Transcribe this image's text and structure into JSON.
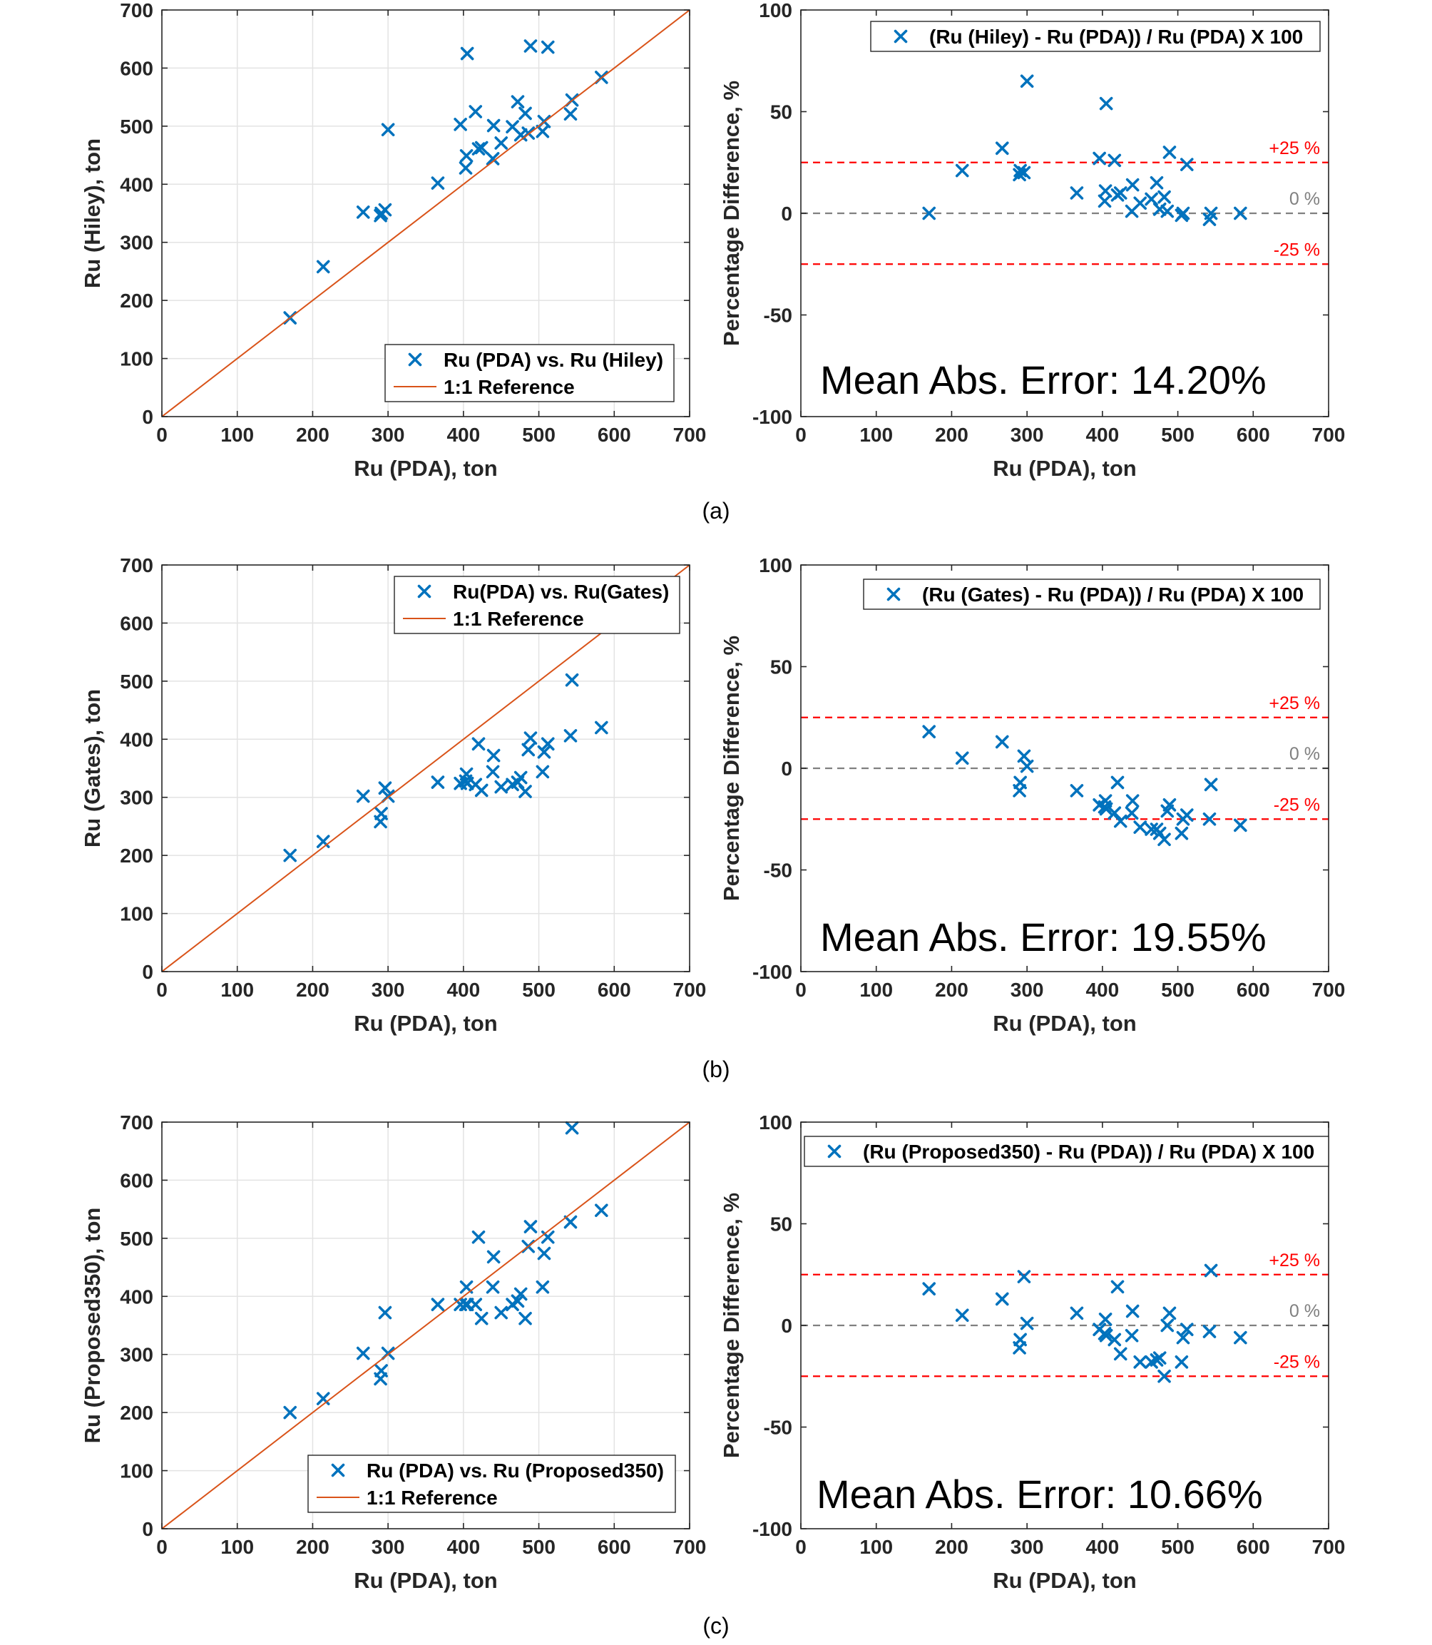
{
  "captions": [
    "(a)",
    "(b)",
    "(c)"
  ],
  "chart_data": [
    {
      "type": "scatter",
      "panel": "a-left",
      "xlabel": "Ru (PDA), ton",
      "ylabel": "Ru (Hiley), ton",
      "xlim": [
        0,
        700
      ],
      "ylim": [
        0,
        700
      ],
      "xticks": [
        0,
        100,
        200,
        300,
        400,
        500,
        600,
        700
      ],
      "yticks": [
        0,
        100,
        200,
        300,
        400,
        500,
        600,
        700
      ],
      "grid": true,
      "legend_position": "bottom-right",
      "series": [
        {
          "name": "Ru (PDA) vs. Ru (Hiley)",
          "color": "#0072BD",
          "marker": "x",
          "x": [
            170,
            214,
            267,
            290,
            291,
            296,
            300,
            366,
            396,
            403,
            404,
            405,
            416,
            420,
            424,
            439,
            440,
            450,
            465,
            472,
            476,
            482,
            486,
            489,
            505,
            507,
            512,
            542,
            544,
            583
          ],
          "y": [
            170,
            258,
            352,
            346,
            350,
            356,
            494,
            402,
            503,
            428,
            449,
            625,
            525,
            461,
            463,
            444,
            501,
            471,
            499,
            542,
            485,
            522,
            488,
            638,
            491,
            508,
            636,
            521,
            545,
            584
          ]
        },
        {
          "name": "1:1 Reference",
          "color": "#D95319",
          "type": "line",
          "x": [
            0,
            700
          ],
          "y": [
            0,
            700
          ]
        }
      ]
    },
    {
      "type": "scatter",
      "panel": "a-right",
      "xlabel": "Ru (PDA), ton",
      "ylabel": "Percentage Difference, %",
      "xlim": [
        0,
        700
      ],
      "ylim": [
        -100,
        100
      ],
      "xticks": [
        0,
        100,
        200,
        300,
        400,
        500,
        600,
        700
      ],
      "yticks": [
        -100,
        -50,
        0,
        50,
        100
      ],
      "grid": false,
      "legend_position": "top-right",
      "reference_lines": [
        {
          "y": 25,
          "label": "+25 %",
          "color": "#FF0000"
        },
        {
          "y": 0,
          "label": "0 %",
          "color": "#808080"
        },
        {
          "y": -25,
          "label": "-25 %",
          "color": "#FF0000"
        }
      ],
      "annotation": "Mean Abs. Error: 14.20%",
      "series": [
        {
          "name": "(Ru (Hiley) - Ru (PDA)) / Ru (PDA) X 100",
          "color": "#0072BD",
          "marker": "x",
          "x": [
            170,
            214,
            267,
            290,
            291,
            296,
            300,
            366,
            396,
            403,
            404,
            405,
            416,
            420,
            424,
            439,
            440,
            450,
            465,
            472,
            476,
            482,
            486,
            489,
            505,
            507,
            512,
            542,
            544,
            583
          ],
          "y": [
            0,
            21,
            32,
            19,
            21,
            20,
            65,
            10,
            27,
            6,
            11,
            54,
            26,
            9,
            10,
            1,
            14,
            5,
            7,
            15,
            2,
            8,
            1,
            30,
            -1,
            0,
            24,
            -3,
            0,
            0
          ]
        }
      ]
    },
    {
      "type": "scatter",
      "panel": "b-left",
      "xlabel": "Ru (PDA), ton",
      "ylabel": "Ru (Gates), ton",
      "xlim": [
        0,
        700
      ],
      "ylim": [
        0,
        700
      ],
      "xticks": [
        0,
        100,
        200,
        300,
        400,
        500,
        600,
        700
      ],
      "yticks": [
        0,
        100,
        200,
        300,
        400,
        500,
        600,
        700
      ],
      "grid": true,
      "legend_position": "top-right",
      "series": [
        {
          "name": "Ru(PDA) vs. Ru(Gates)",
          "color": "#0072BD",
          "marker": "x",
          "x": [
            170,
            214,
            267,
            290,
            291,
            296,
            300,
            366,
            396,
            403,
            404,
            405,
            416,
            420,
            424,
            439,
            440,
            450,
            465,
            472,
            476,
            482,
            486,
            489,
            505,
            507,
            512,
            542,
            544,
            583
          ],
          "y": [
            200,
            224,
            302,
            258,
            272,
            316,
            302,
            326,
            324,
            328,
            340,
            324,
            322,
            392,
            312,
            344,
            372,
            318,
            322,
            326,
            334,
            310,
            382,
            402,
            344,
            378,
            392,
            406,
            502,
            420
          ]
        },
        {
          "name": "1:1 Reference",
          "color": "#D95319",
          "type": "line",
          "x": [
            0,
            700
          ],
          "y": [
            0,
            700
          ]
        }
      ]
    },
    {
      "type": "scatter",
      "panel": "b-right",
      "xlabel": "Ru (PDA), ton",
      "ylabel": "Percentage Difference, %",
      "xlim": [
        0,
        700
      ],
      "ylim": [
        -100,
        100
      ],
      "xticks": [
        0,
        100,
        200,
        300,
        400,
        500,
        600,
        700
      ],
      "yticks": [
        -100,
        -50,
        0,
        50,
        100
      ],
      "grid": false,
      "legend_position": "top-right",
      "reference_lines": [
        {
          "y": 25,
          "label": "+25 %",
          "color": "#FF0000"
        },
        {
          "y": 0,
          "label": "0 %",
          "color": "#808080"
        },
        {
          "y": -25,
          "label": "-25 %",
          "color": "#FF0000"
        }
      ],
      "annotation": "Mean Abs. Error: 19.55%",
      "series": [
        {
          "name": "(Ru (Gates) - Ru (PDA)) / Ru (PDA) X 100",
          "color": "#0072BD",
          "marker": "x",
          "x": [
            170,
            214,
            267,
            290,
            291,
            296,
            300,
            366,
            396,
            403,
            404,
            405,
            416,
            420,
            424,
            439,
            440,
            450,
            465,
            472,
            476,
            482,
            486,
            489,
            505,
            507,
            512,
            542,
            544,
            583
          ],
          "y": [
            18,
            5,
            13,
            -11,
            -7,
            6,
            1,
            -11,
            -18,
            -19,
            -16,
            -20,
            -22,
            -7,
            -26,
            -22,
            -16,
            -29,
            -30,
            -30,
            -32,
            -35,
            -21,
            -18,
            -32,
            -25,
            -23,
            -25,
            -8,
            -28
          ]
        }
      ]
    },
    {
      "type": "scatter",
      "panel": "c-left",
      "xlabel": "Ru (PDA), ton",
      "ylabel": "Ru (Proposed350), ton",
      "xlim": [
        0,
        700
      ],
      "ylim": [
        0,
        700
      ],
      "xticks": [
        0,
        100,
        200,
        300,
        400,
        500,
        600,
        700
      ],
      "yticks": [
        0,
        100,
        200,
        300,
        400,
        500,
        600,
        700
      ],
      "grid": true,
      "legend_position": "bottom-right",
      "series": [
        {
          "name": "Ru (PDA) vs. Ru (Proposed350)",
          "color": "#0072BD",
          "marker": "x",
          "x": [
            170,
            214,
            267,
            290,
            291,
            296,
            300,
            366,
            396,
            403,
            404,
            405,
            416,
            420,
            424,
            439,
            440,
            450,
            465,
            472,
            476,
            482,
            486,
            489,
            505,
            507,
            512,
            542,
            544,
            583
          ],
          "y": [
            200,
            224,
            302,
            258,
            272,
            372,
            302,
            386,
            386,
            386,
            416,
            386,
            386,
            502,
            362,
            416,
            468,
            372,
            386,
            392,
            404,
            362,
            486,
            520,
            416,
            474,
            502,
            528,
            690,
            548
          ]
        },
        {
          "name": "1:1 Reference",
          "color": "#D95319",
          "type": "line",
          "x": [
            0,
            700
          ],
          "y": [
            0,
            700
          ]
        }
      ]
    },
    {
      "type": "scatter",
      "panel": "c-right",
      "xlabel": "Ru (PDA), ton",
      "ylabel": "Percentage Difference, %",
      "xlim": [
        0,
        700
      ],
      "ylim": [
        -100,
        100
      ],
      "xticks": [
        0,
        100,
        200,
        300,
        400,
        500,
        600,
        700
      ],
      "yticks": [
        -100,
        -50,
        0,
        50,
        100
      ],
      "grid": false,
      "legend_position": "top-right",
      "reference_lines": [
        {
          "y": 25,
          "label": "+25 %",
          "color": "#FF0000"
        },
        {
          "y": 0,
          "label": "0 %",
          "color": "#808080"
        },
        {
          "y": -25,
          "label": "-25 %",
          "color": "#FF0000"
        }
      ],
      "annotation": "Mean Abs. Error: 10.66%",
      "series": [
        {
          "name": "(Ru (Proposed350) - Ru (PDA)) / Ru (PDA) X 100",
          "color": "#0072BD",
          "marker": "x",
          "x": [
            170,
            214,
            267,
            290,
            291,
            296,
            300,
            366,
            396,
            403,
            404,
            405,
            416,
            420,
            424,
            439,
            440,
            450,
            465,
            472,
            476,
            482,
            486,
            489,
            505,
            507,
            512,
            542,
            544,
            583
          ],
          "y": [
            18,
            5,
            13,
            -11,
            -7,
            24,
            1,
            6,
            -2,
            -4,
            3,
            -5,
            -7,
            19,
            -14,
            -5,
            7,
            -18,
            -18,
            -17,
            -16,
            -25,
            0,
            6,
            -18,
            -6,
            -2,
            -3,
            27,
            -6
          ]
        }
      ]
    }
  ]
}
